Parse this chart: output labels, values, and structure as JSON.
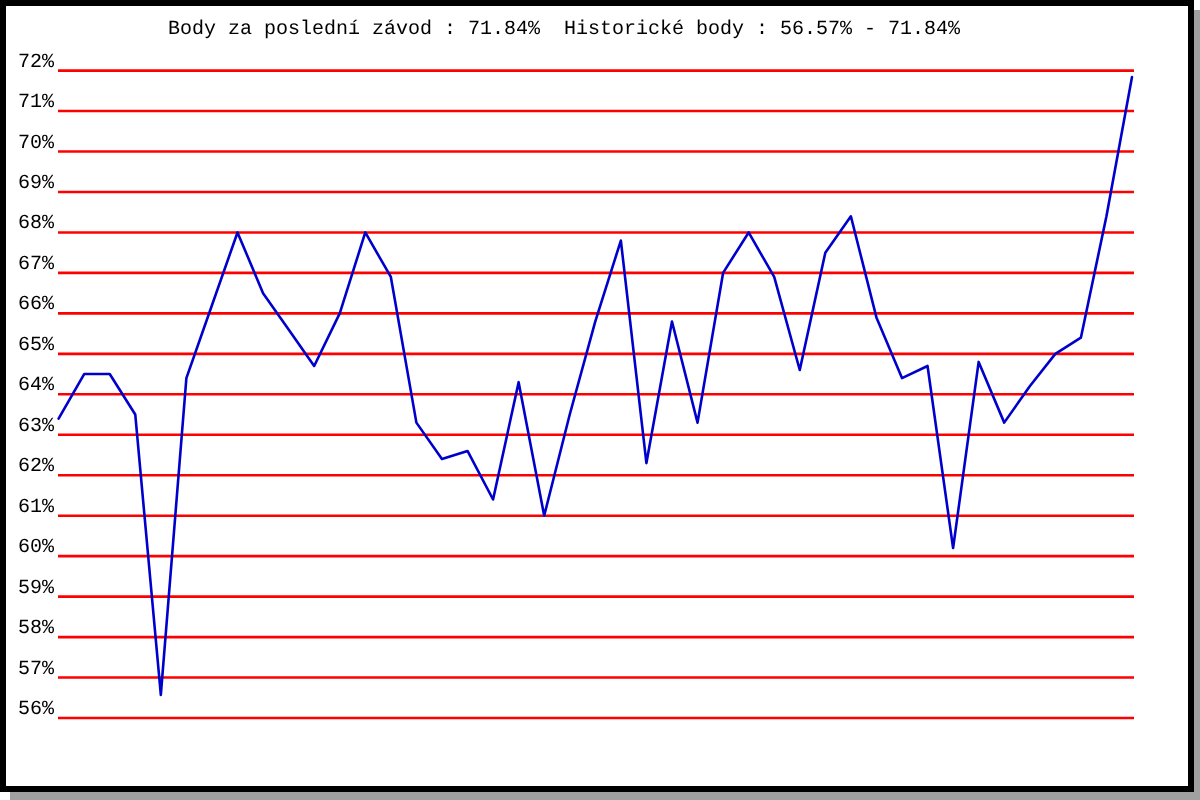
{
  "chart_data": {
    "type": "line",
    "title": "Body za poslední závod : 71.84%  Historické body : 56.57% - 71.84%",
    "categories": [
      null,
      null,
      null,
      null,
      null,
      null,
      null,
      null,
      null,
      null,
      null,
      null,
      null,
      null,
      null,
      null,
      null,
      null,
      null,
      null,
      null,
      null,
      null,
      null,
      null,
      null,
      null,
      null,
      null,
      null,
      null,
      null,
      null,
      null,
      null,
      null,
      null,
      null,
      null,
      null,
      null,
      null,
      null
    ],
    "series": [
      {
        "color": "#0000cc",
        "values": [
          63.4,
          64.5,
          64.5,
          63.5,
          56.57,
          64.4,
          66.2,
          68.0,
          66.5,
          65.6,
          64.7,
          66.0,
          68.0,
          66.9,
          63.3,
          62.4,
          62.6,
          61.4,
          64.3,
          61.0,
          63.5,
          65.8,
          67.8,
          62.3,
          65.8,
          63.3,
          67.0,
          68.0,
          66.9,
          64.6,
          67.5,
          68.4,
          65.9,
          64.4,
          64.7,
          60.2,
          64.8,
          63.3,
          64.2,
          65.0,
          65.4,
          68.4,
          71.84
        ]
      }
    ],
    "ylim": [
      56,
      72
    ],
    "yticks": [
      {
        "value": 56,
        "label": "56%"
      },
      {
        "value": 57,
        "label": "57%"
      },
      {
        "value": 58,
        "label": "58%"
      },
      {
        "value": 59,
        "label": "59%"
      },
      {
        "value": 60,
        "label": "60%"
      },
      {
        "value": 61,
        "label": "61%"
      },
      {
        "value": 62,
        "label": "62%"
      },
      {
        "value": 63,
        "label": "63%"
      },
      {
        "value": 64,
        "label": "64%"
      },
      {
        "value": 65,
        "label": "65%"
      },
      {
        "value": 66,
        "label": "66%"
      },
      {
        "value": 67,
        "label": "67%"
      },
      {
        "value": 68,
        "label": "68%"
      },
      {
        "value": 69,
        "label": "69%"
      },
      {
        "value": 70,
        "label": "70%"
      },
      {
        "value": 71,
        "label": "71%"
      },
      {
        "value": 72,
        "label": "72%"
      }
    ],
    "grid": "y"
  }
}
